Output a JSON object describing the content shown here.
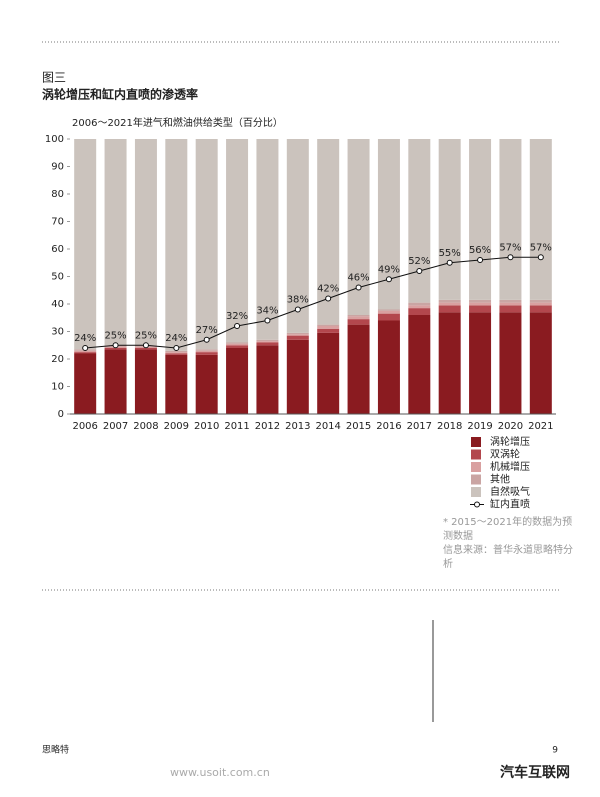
{
  "header": {
    "figure": "图三",
    "title": "涡轮增压和缸内直喷的渗透率"
  },
  "chart_data": {
    "type": "bar",
    "stacked": true,
    "title": "2006～2021年进气和燃油供给类型（百分比）",
    "categories": [
      "2006",
      "2007",
      "2008",
      "2009",
      "2010",
      "2011",
      "2012",
      "2013",
      "2014",
      "2015",
      "2016",
      "2017",
      "2018",
      "2019",
      "2020",
      "2021"
    ],
    "ylim": [
      0,
      100
    ],
    "yticks": [
      0,
      10,
      20,
      30,
      40,
      50,
      60,
      70,
      80,
      90,
      100
    ],
    "series": [
      {
        "name": "涡轮增压",
        "color": "#8a1b20",
        "values": [
          22,
          23.5,
          23.5,
          21.5,
          21.5,
          24,
          25,
          27,
          29.5,
          32.5,
          34,
          36,
          37,
          37,
          37,
          37
        ]
      },
      {
        "name": "双涡轮",
        "color": "#b3474d",
        "values": [
          0.5,
          0.5,
          0.5,
          0.5,
          1,
          1,
          1,
          1.5,
          1.5,
          2,
          2.5,
          2.5,
          2.5,
          2.5,
          2.5,
          2.5
        ]
      },
      {
        "name": "机械增压",
        "color": "#d9a0a0",
        "values": [
          0.5,
          0.5,
          0.5,
          0.5,
          0.5,
          0.5,
          0.5,
          0.5,
          1,
          1,
          1,
          1,
          1,
          1,
          1,
          1
        ]
      },
      {
        "name": "其他",
        "color": "#caa5a3",
        "values": [
          0.5,
          0.5,
          0.5,
          0.5,
          0.5,
          0.5,
          0.5,
          0.5,
          0.5,
          0.5,
          0.5,
          1,
          1,
          1,
          1,
          1
        ]
      },
      {
        "name": "自然吸气",
        "color": "#cbc3bd",
        "values": [
          76.5,
          75,
          75,
          77,
          76.5,
          74,
          73,
          70.5,
          67.5,
          64,
          62,
          59.5,
          58.5,
          58.5,
          58.5,
          58.5
        ]
      },
      {
        "name": "缸内直喷",
        "type": "line",
        "color": "#111111",
        "values": [
          24,
          25,
          25,
          24,
          27,
          32,
          34,
          38,
          42,
          46,
          49,
          52,
          55,
          56,
          57,
          57
        ],
        "value_labels": [
          "24%",
          "25%",
          "25%",
          "24%",
          "27%",
          "32%",
          "34%",
          "38%",
          "42%",
          "46%",
          "49%",
          "52%",
          "55%",
          "56%",
          "57%",
          "57%"
        ]
      }
    ]
  },
  "notes": [
    "* 2015～2021年的数据为预测数据",
    "信息来源：普华永道思略特分析"
  ],
  "footer": {
    "brand": "思略特",
    "page": "9",
    "watermark_url": "www.usoit.com.cn",
    "watermark_name": "汽车互联网"
  }
}
